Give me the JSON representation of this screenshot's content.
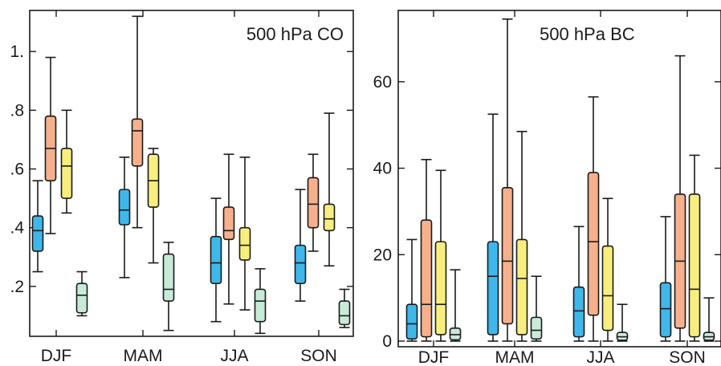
{
  "chart_data": [
    {
      "type": "box",
      "title": "500 hPa CO",
      "xlabel": "",
      "ylabel": "",
      "categories": [
        "DJF",
        "MAM",
        "JJA",
        "SON"
      ],
      "ylim": [
        0.03,
        1.14
      ],
      "yticks": [
        0.2,
        0.4,
        0.6,
        0.8,
        1.0
      ],
      "ytick_labels": [
        ".2",
        ".4",
        ".6",
        ".8",
        "1."
      ],
      "series": [
        {
          "color": "#3fb7ea",
          "boxes": [
            {
              "min": 0.25,
              "q1": 0.32,
              "median": 0.39,
              "q3": 0.44,
              "max": 0.56
            },
            {
              "min": 0.23,
              "q1": 0.41,
              "median": 0.46,
              "q3": 0.53,
              "max": 0.64
            },
            {
              "min": 0.08,
              "q1": 0.21,
              "median": 0.28,
              "q3": 0.37,
              "max": 0.5
            },
            {
              "min": 0.15,
              "q1": 0.21,
              "median": 0.28,
              "q3": 0.34,
              "max": 0.53
            }
          ]
        },
        {
          "color": "#f6b08c",
          "boxes": [
            {
              "min": 0.38,
              "q1": 0.56,
              "median": 0.67,
              "q3": 0.78,
              "max": 0.98
            },
            {
              "min": 0.4,
              "q1": 0.61,
              "median": 0.73,
              "q3": 0.77,
              "max": 1.12
            },
            {
              "min": 0.14,
              "q1": 0.36,
              "median": 0.39,
              "q3": 0.47,
              "max": 0.65
            },
            {
              "min": 0.32,
              "q1": 0.4,
              "median": 0.48,
              "q3": 0.57,
              "max": 0.65
            }
          ]
        },
        {
          "color": "#f7ee7d",
          "boxes": [
            {
              "min": 0.45,
              "q1": 0.5,
              "median": 0.61,
              "q3": 0.67,
              "max": 0.8
            },
            {
              "min": 0.28,
              "q1": 0.47,
              "median": 0.56,
              "q3": 0.65,
              "max": 0.67
            },
            {
              "min": 0.12,
              "q1": 0.29,
              "median": 0.34,
              "q3": 0.4,
              "max": 0.64
            },
            {
              "min": 0.27,
              "q1": 0.39,
              "median": 0.43,
              "q3": 0.48,
              "max": 0.79
            }
          ]
        },
        {
          "color": "#c8ead8",
          "boxes": [
            {
              "min": 0.1,
              "q1": 0.11,
              "median": 0.17,
              "q3": 0.21,
              "max": 0.25
            },
            {
              "min": 0.05,
              "q1": 0.15,
              "median": 0.19,
              "q3": 0.31,
              "max": 0.35
            },
            {
              "min": 0.04,
              "q1": 0.08,
              "median": 0.15,
              "q3": 0.19,
              "max": 0.26
            },
            {
              "min": 0.06,
              "q1": 0.07,
              "median": 0.1,
              "q3": 0.15,
              "max": 0.19
            }
          ]
        }
      ]
    },
    {
      "type": "box",
      "title": "500 hPa BC",
      "xlabel": "",
      "ylabel": "",
      "categories": [
        "DJF",
        "MAM",
        "JJA",
        "SON"
      ],
      "ylim": [
        -1.3,
        76.5
      ],
      "yticks": [
        0,
        20,
        40,
        60
      ],
      "ytick_labels": [
        "0",
        "20",
        "40",
        "60"
      ],
      "series": [
        {
          "color": "#3fb7ea",
          "boxes": [
            {
              "min": 0.0,
              "q1": 0.5,
              "median": 4.0,
              "q3": 8.5,
              "max": 23.5
            },
            {
              "min": 0.0,
              "q1": 1.5,
              "median": 15.0,
              "q3": 23.0,
              "max": 52.5
            },
            {
              "min": 0.0,
              "q1": 1.0,
              "median": 7.0,
              "q3": 12.5,
              "max": 26.5
            },
            {
              "min": 0.0,
              "q1": 1.0,
              "median": 7.5,
              "q3": 13.5,
              "max": 28.8
            }
          ]
        },
        {
          "color": "#f6b08c",
          "boxes": [
            {
              "min": 0.0,
              "q1": 1.0,
              "median": 8.5,
              "q3": 28.0,
              "max": 42.0
            },
            {
              "min": 0.0,
              "q1": 4.0,
              "median": 18.5,
              "q3": 35.5,
              "max": 74.5
            },
            {
              "min": 0.0,
              "q1": 6.0,
              "median": 23.0,
              "q3": 39.0,
              "max": 56.5
            },
            {
              "min": 0.0,
              "q1": 3.0,
              "median": 18.5,
              "q3": 34.0,
              "max": 66.0
            }
          ]
        },
        {
          "color": "#f7ee7d",
          "boxes": [
            {
              "min": 0.0,
              "q1": 1.5,
              "median": 8.5,
              "q3": 23.0,
              "max": 39.5
            },
            {
              "min": 0.0,
              "q1": 1.5,
              "median": 14.5,
              "q3": 23.5,
              "max": 48.5
            },
            {
              "min": 0.0,
              "q1": 2.5,
              "median": 10.5,
              "q3": 22.0,
              "max": 33.0
            },
            {
              "min": 0.0,
              "q1": 1.0,
              "median": 12.0,
              "q3": 34.0,
              "max": 43.0
            }
          ]
        },
        {
          "color": "#c8ead8",
          "boxes": [
            {
              "min": 0.0,
              "q1": 0.3,
              "median": 1.5,
              "q3": 3.0,
              "max": 16.5
            },
            {
              "min": 0.0,
              "q1": 0.5,
              "median": 2.5,
              "q3": 5.5,
              "max": 15.0
            },
            {
              "min": 0.0,
              "q1": 0.2,
              "median": 1.0,
              "q3": 2.0,
              "max": 8.5
            },
            {
              "min": 0.0,
              "q1": 0.2,
              "median": 1.0,
              "q3": 2.0,
              "max": 10.0
            }
          ]
        }
      ]
    }
  ]
}
